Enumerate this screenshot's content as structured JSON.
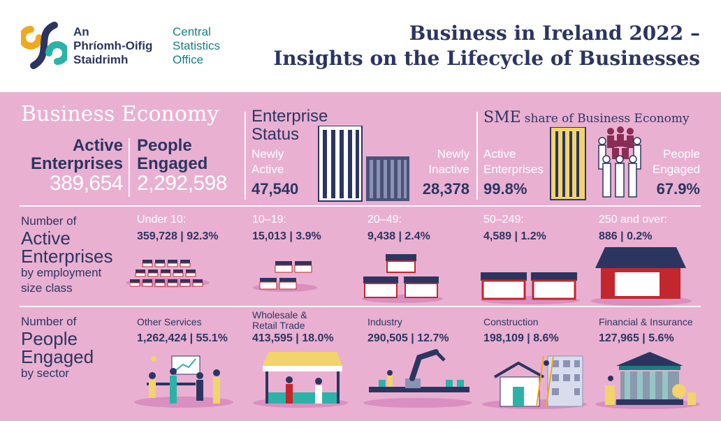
{
  "header": {
    "logo_irish": [
      "An",
      "Phríomh-Oifig",
      "Staidrimh"
    ],
    "logo_english": [
      "Central",
      "Statistics",
      "Office"
    ],
    "title_line1": "Business in Ireland 2022 –",
    "title_line2": "Insights on the Lifecycle of Businesses"
  },
  "business_economy": {
    "heading": "Business Economy",
    "active_label_1": "Active",
    "active_label_2": "Enterprises",
    "active_value": "389,654",
    "people_label_1": "People",
    "people_label_2": "Engaged",
    "people_value": "2,292,598"
  },
  "enterprise_status": {
    "heading_1": "Enterprise",
    "heading_2": "Status",
    "newly_active_1": "Newly",
    "newly_active_2": "Active",
    "newly_active_value": "47,540",
    "newly_inactive_1": "Newly",
    "newly_inactive_2": "Inactive",
    "newly_inactive_value": "28,378"
  },
  "sme_share": {
    "heading_main": "SME",
    "heading_rest": "share of Business Economy",
    "active_1": "Active",
    "active_2": "Enterprises",
    "active_value": "99.8%",
    "people_1": "People",
    "people_2": "Engaged",
    "people_value": "67.9%"
  },
  "size_class": {
    "title_1": "Number of",
    "title_2": "Active",
    "title_3": "Enterprises",
    "title_4": "by employment",
    "title_5": "size class",
    "classes": [
      {
        "label": "Under 10:",
        "value": "359,728 | 92.3%"
      },
      {
        "label": "10–19:",
        "value": "15,013 | 3.9%"
      },
      {
        "label": "20–49:",
        "value": "9,438 | 2.4%"
      },
      {
        "label": "50–249:",
        "value": "4,589 | 1.2%"
      },
      {
        "label": "250 and over:",
        "value": "886 | 0.2%"
      }
    ]
  },
  "sectors": {
    "title_1": "Number of",
    "title_2": "People",
    "title_3": "Engaged",
    "title_4": "by sector",
    "items": [
      {
        "label": "Other Services",
        "value": "1,262,424 | 55.1%"
      },
      {
        "label_1": "Wholesale &",
        "label_2": "Retail Trade",
        "value": "413,595 | 18.0%"
      },
      {
        "label": "Industry",
        "value": "290,505 | 12.7%"
      },
      {
        "label": "Construction",
        "value": "198,109 | 8.6%"
      },
      {
        "label": "Financial & Insurance",
        "value": "127,965 | 5.6%"
      }
    ]
  },
  "colors": {
    "navy": "#2c3560",
    "pink": "#e9b0d2",
    "teal": "#177f7f",
    "red": "#c1272d",
    "yellow": "#f3d36b"
  }
}
